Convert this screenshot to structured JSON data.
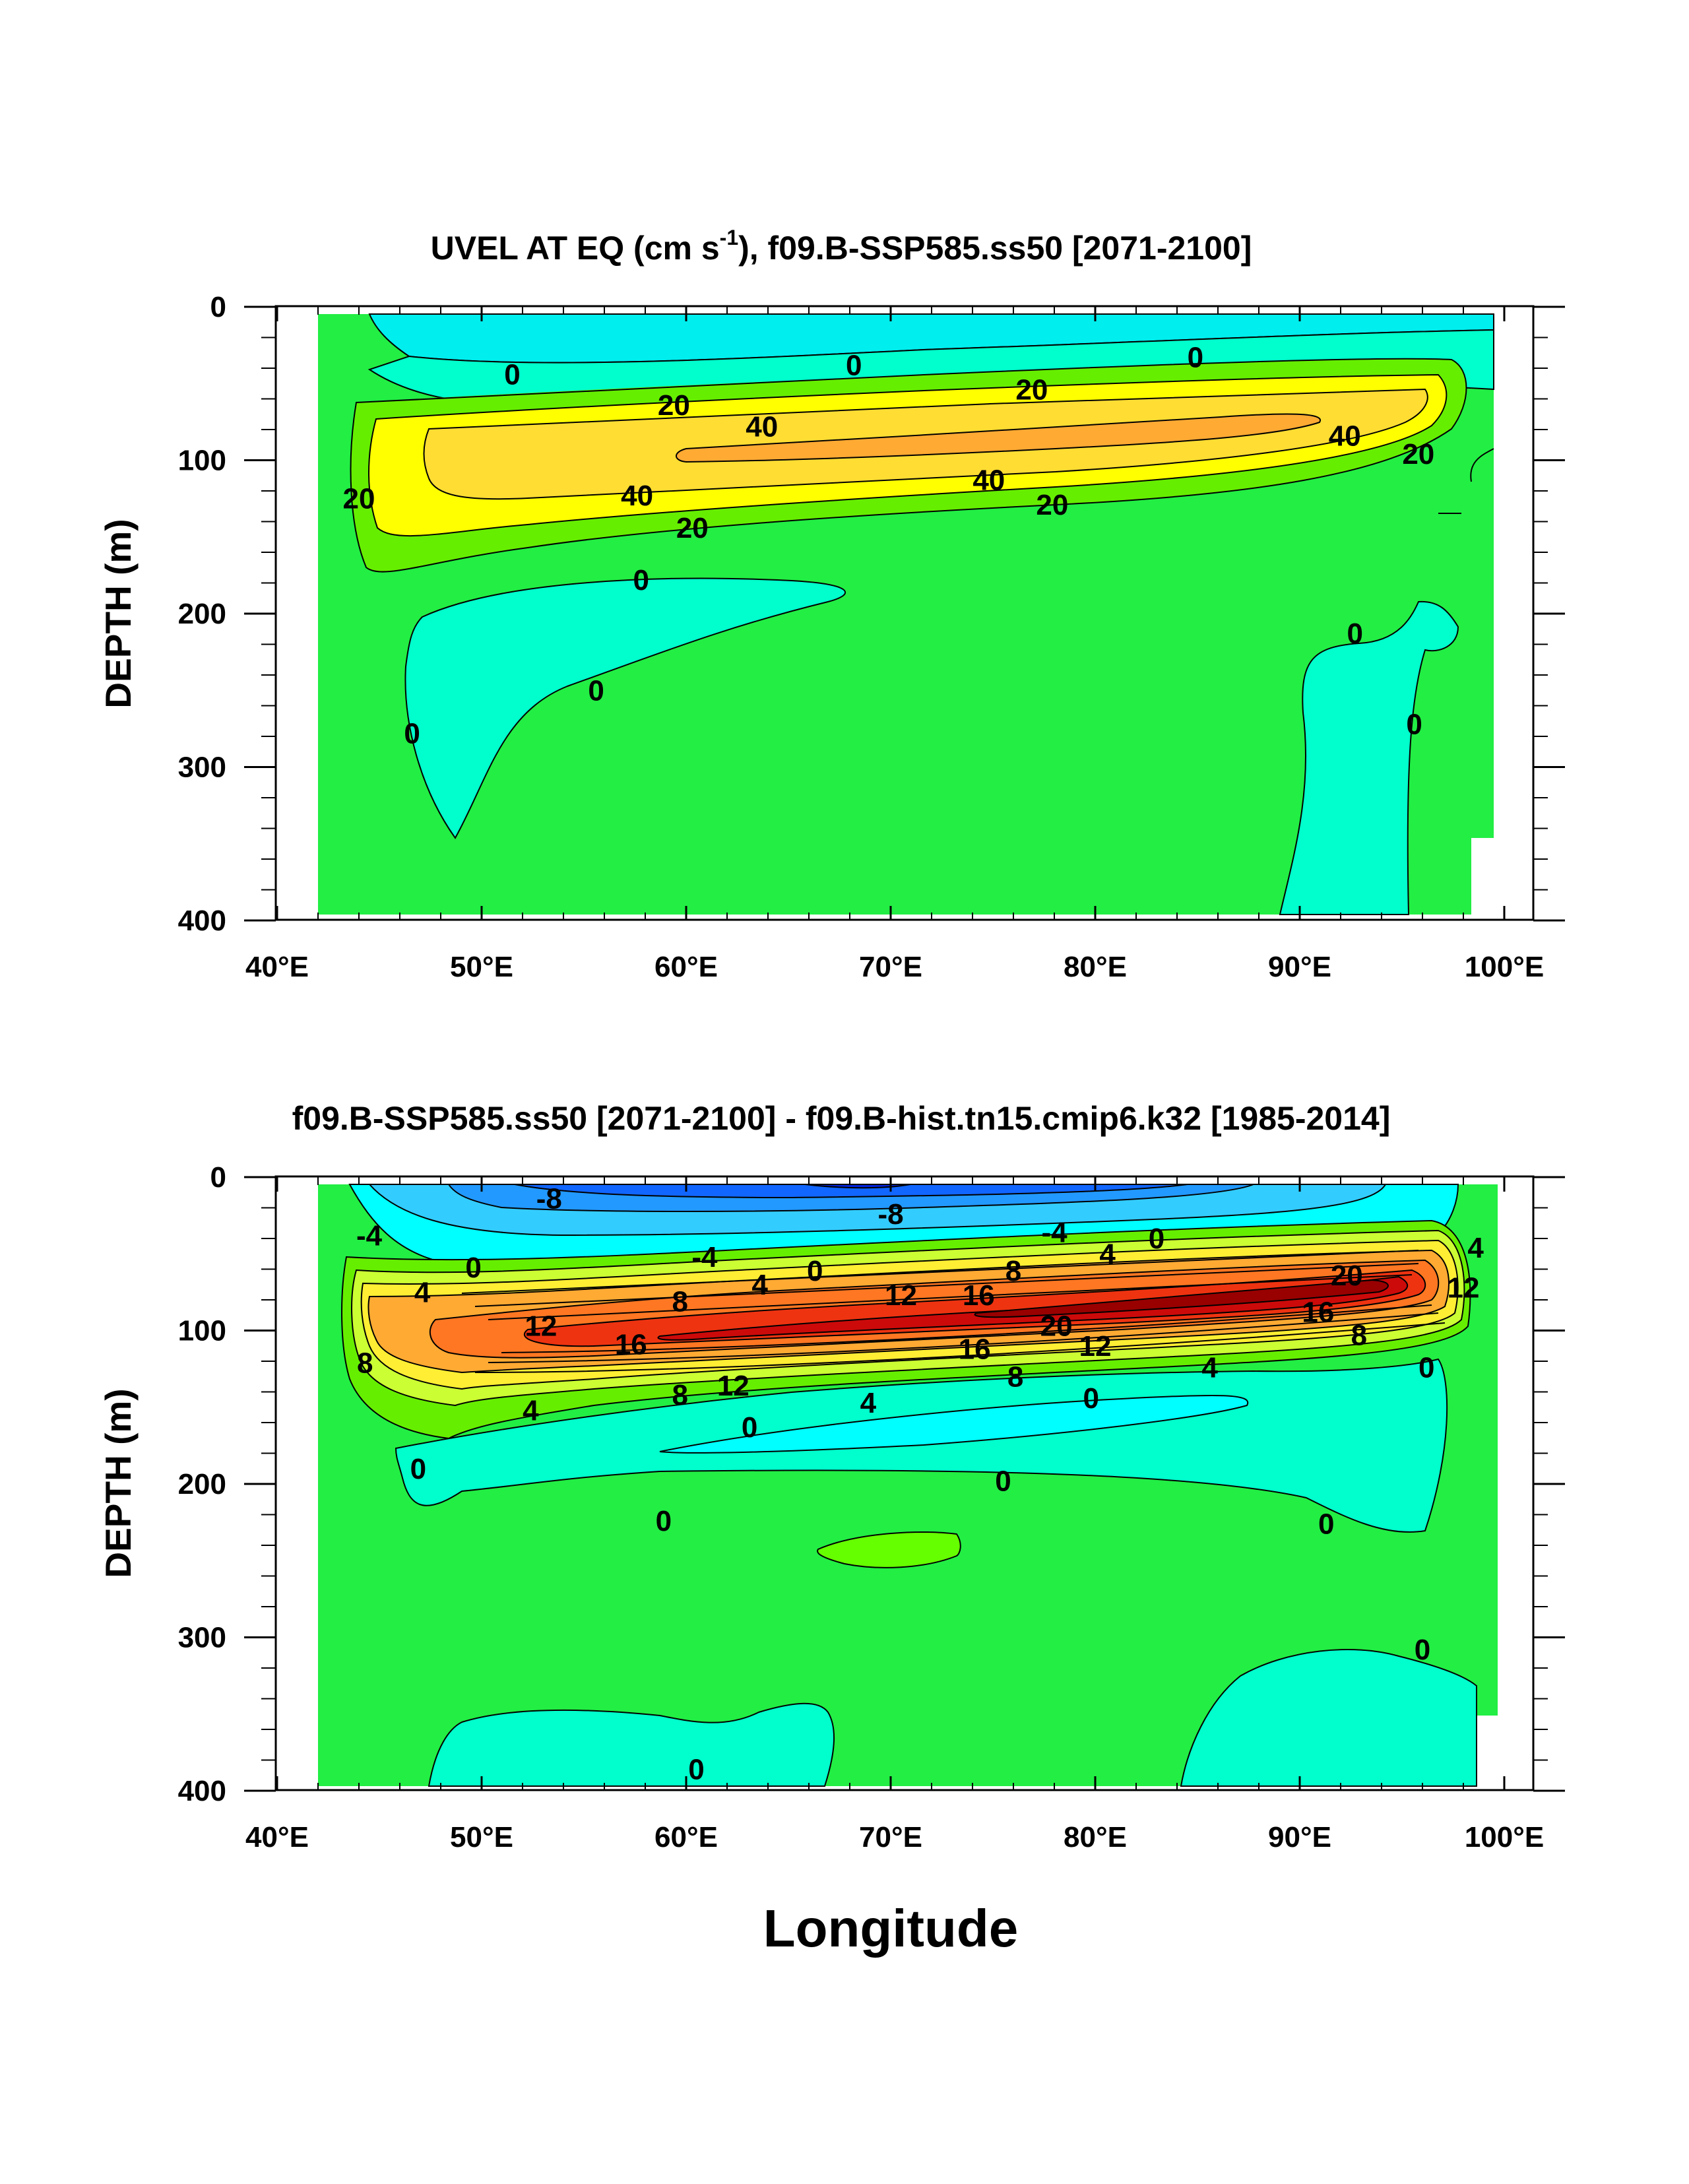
{
  "figure": {
    "xlabel": "Longitude",
    "ylabel": "DEPTH (m)"
  },
  "panels": [
    {
      "title_main": "UVEL AT EQ (cm s",
      "title_sup": "-1",
      "title_rest": "), f09.B-SSP585.ss50 [2071-2100]"
    },
    {
      "title_main": "f09.B-SSP585.ss50 [2071-2100] - f09.B-hist.tn15.cmip6.k32 [1985-2014]",
      "title_sup": "",
      "title_rest": ""
    }
  ],
  "chart_data": [
    {
      "type": "contour",
      "title": "UVEL AT EQ (cm s-1), f09.B-SSP585.ss50 [2071-2100]",
      "xlabel": "",
      "ylabel": "DEPTH (m)",
      "x_ticks": [
        "40°E",
        "50°E",
        "60°E",
        "70°E",
        "80°E",
        "90°E",
        "100°E"
      ],
      "y_ticks": [
        "0",
        "100",
        "200",
        "300",
        "400"
      ],
      "xlim": [
        40,
        101.5
      ],
      "ylim": [
        400,
        0
      ],
      "colors": {
        "background": "#22ee44",
        "neg_weak": "#00ffcc",
        "neg_mid": "#00eeee",
        "pos_1": "#66ee00",
        "pos_2": "#ffff00",
        "pos_3": "#ffdd33",
        "pos_4": "#ffaa33"
      },
      "contour_labels": [
        {
          "text": "0",
          "lon": 51.5,
          "depth": 44
        },
        {
          "text": "0",
          "lon": 68.2,
          "depth": 38
        },
        {
          "text": "0",
          "lon": 84.9,
          "depth": 33
        },
        {
          "text": "20",
          "lon": 59.4,
          "depth": 64
        },
        {
          "text": "20",
          "lon": 76.9,
          "depth": 54
        },
        {
          "text": "40",
          "lon": 63.7,
          "depth": 78
        },
        {
          "text": "40",
          "lon": 92.2,
          "depth": 84
        },
        {
          "text": "20",
          "lon": 95.8,
          "depth": 96
        },
        {
          "text": "20",
          "lon": 44.0,
          "depth": 125
        },
        {
          "text": "40",
          "lon": 57.6,
          "depth": 123
        },
        {
          "text": "40",
          "lon": 74.8,
          "depth": 113
        },
        {
          "text": "20",
          "lon": 60.3,
          "depth": 144
        },
        {
          "text": "20",
          "lon": 77.9,
          "depth": 129
        },
        {
          "text": "0",
          "lon": 57.8,
          "depth": 178
        },
        {
          "text": "0",
          "lon": 55.6,
          "depth": 250
        },
        {
          "text": "0",
          "lon": 46.6,
          "depth": 278
        },
        {
          "text": "0",
          "lon": 92.7,
          "depth": 213
        },
        {
          "text": "0",
          "lon": 95.6,
          "depth": 272
        }
      ]
    },
    {
      "type": "contour",
      "title": "f09.B-SSP585.ss50 [2071-2100] - f09.B-hist.tn15.cmip6.k32 [1985-2014]",
      "xlabel": "Longitude",
      "ylabel": "DEPTH (m)",
      "x_ticks": [
        "40°E",
        "50°E",
        "60°E",
        "70°E",
        "80°E",
        "90°E",
        "100°E"
      ],
      "y_ticks": [
        "0",
        "100",
        "200",
        "300",
        "400"
      ],
      "xlim": [
        40,
        101.5
      ],
      "ylim": [
        400,
        0
      ],
      "colors": {
        "background": "#22ee44",
        "neg_weak": "#00ffcc",
        "neg_1": "#00ffff",
        "neg_2": "#33ccff",
        "neg_3": "#2299ff",
        "neg_4": "#1166ff",
        "neg_5": "#0022dd",
        "pos_1": "#66ee00",
        "pos_2": "#ccff33",
        "pos_3": "#ffee33",
        "pos_4": "#ffaa33",
        "pos_5": "#ff7722",
        "pos_6": "#ee3311",
        "pos_7": "#cc0a0a",
        "pos_8": "#990000"
      },
      "contour_labels": [
        {
          "text": "-8",
          "lon": 53.3,
          "depth": 14
        },
        {
          "text": "-8",
          "lon": 70.0,
          "depth": 24
        },
        {
          "text": "-4",
          "lon": 44.5,
          "depth": 38
        },
        {
          "text": "-4",
          "lon": 78.0,
          "depth": 36
        },
        {
          "text": "0",
          "lon": 83.0,
          "depth": 40
        },
        {
          "text": "-4",
          "lon": 60.9,
          "depth": 52
        },
        {
          "text": "4",
          "lon": 80.6,
          "depth": 50
        },
        {
          "text": "4",
          "lon": 98.6,
          "depth": 46
        },
        {
          "text": "0",
          "lon": 49.6,
          "depth": 59
        },
        {
          "text": "0",
          "lon": 66.3,
          "depth": 61
        },
        {
          "text": "8",
          "lon": 76.0,
          "depth": 61
        },
        {
          "text": "20",
          "lon": 92.3,
          "depth": 64
        },
        {
          "text": "4",
          "lon": 47.1,
          "depth": 75
        },
        {
          "text": "4",
          "lon": 63.6,
          "depth": 70
        },
        {
          "text": "12",
          "lon": 70.5,
          "depth": 77
        },
        {
          "text": "16",
          "lon": 74.3,
          "depth": 77
        },
        {
          "text": "12",
          "lon": 98.0,
          "depth": 72
        },
        {
          "text": "8",
          "lon": 59.7,
          "depth": 81
        },
        {
          "text": "12",
          "lon": 52.9,
          "depth": 97
        },
        {
          "text": "16",
          "lon": 57.3,
          "depth": 109
        },
        {
          "text": "20",
          "lon": 78.1,
          "depth": 97
        },
        {
          "text": "16",
          "lon": 90.9,
          "depth": 88
        },
        {
          "text": "12",
          "lon": 80.0,
          "depth": 110
        },
        {
          "text": "16",
          "lon": 74.1,
          "depth": 112
        },
        {
          "text": "8",
          "lon": 44.3,
          "depth": 121
        },
        {
          "text": "8",
          "lon": 92.9,
          "depth": 103
        },
        {
          "text": "12",
          "lon": 62.3,
          "depth": 136
        },
        {
          "text": "8",
          "lon": 76.1,
          "depth": 130
        },
        {
          "text": "4",
          "lon": 85.6,
          "depth": 124
        },
        {
          "text": "0",
          "lon": 96.2,
          "depth": 124
        },
        {
          "text": "8",
          "lon": 59.7,
          "depth": 142
        },
        {
          "text": "4",
          "lon": 68.9,
          "depth": 147
        },
        {
          "text": "0",
          "lon": 79.8,
          "depth": 144
        },
        {
          "text": "4",
          "lon": 52.4,
          "depth": 152
        },
        {
          "text": "0",
          "lon": 63.1,
          "depth": 163
        },
        {
          "text": "0",
          "lon": 46.9,
          "depth": 190
        },
        {
          "text": "0",
          "lon": 75.5,
          "depth": 198
        },
        {
          "text": "0",
          "lon": 58.9,
          "depth": 224
        },
        {
          "text": "0",
          "lon": 91.3,
          "depth": 226
        },
        {
          "text": "0",
          "lon": 96.0,
          "depth": 308
        },
        {
          "text": "0",
          "lon": 60.5,
          "depth": 386
        }
      ]
    }
  ]
}
